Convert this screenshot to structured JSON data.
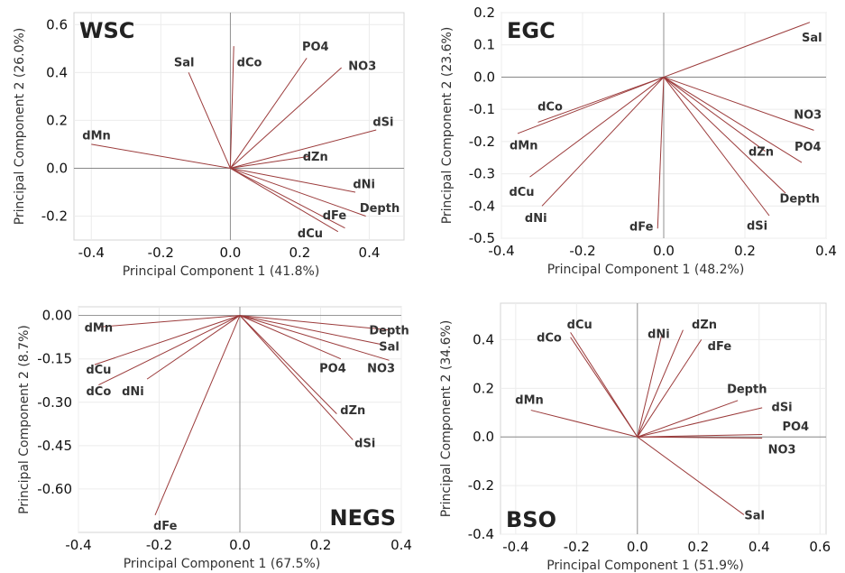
{
  "figure": {
    "colors": {
      "loading": "#9b3b3b",
      "axis_zero": "#7a7a7a",
      "grid": "#ececec",
      "frame": "#d4d4d4"
    }
  },
  "chart_data": [
    {
      "type": "scatter",
      "subtype": "biplot-loadings",
      "title": "WSC",
      "title_position": "top-left",
      "xlabel": "Principal Component 1 (41.8%)",
      "ylabel": "Principal Component 2 (26.0%)",
      "xlim": [
        -0.45,
        0.5
      ],
      "ylim": [
        -0.3,
        0.65
      ],
      "xticks": [
        -0.4,
        -0.2,
        0.0,
        0.2,
        0.4
      ],
      "xtick_labels": [
        "-0.4",
        "-0.2",
        "0.0",
        "0.2",
        "0.4"
      ],
      "yticks": [
        -0.2,
        0.0,
        0.2,
        0.4,
        0.6
      ],
      "ytick_labels": [
        "-0.2",
        "0.0",
        "0.2",
        "0.4",
        "0.6"
      ],
      "grid": true,
      "vectors": [
        {
          "name": "Sal",
          "x": -0.12,
          "y": 0.4,
          "lx": -0.133,
          "ly": 0.445
        },
        {
          "name": "dCo",
          "x": 0.01,
          "y": 0.51,
          "lx": 0.055,
          "ly": 0.445
        },
        {
          "name": "PO4",
          "x": 0.22,
          "y": 0.46,
          "lx": 0.245,
          "ly": 0.51
        },
        {
          "name": "NO3",
          "x": 0.32,
          "y": 0.42,
          "lx": 0.38,
          "ly": 0.43
        },
        {
          "name": "dSi",
          "x": 0.42,
          "y": 0.16,
          "lx": 0.44,
          "ly": 0.195
        },
        {
          "name": "dMn",
          "x": -0.4,
          "y": 0.1,
          "lx": -0.385,
          "ly": 0.14
        },
        {
          "name": "dZn",
          "x": 0.23,
          "y": 0.05,
          "lx": 0.245,
          "ly": 0.05
        },
        {
          "name": "dNi",
          "x": 0.36,
          "y": -0.1,
          "lx": 0.385,
          "ly": -0.065
        },
        {
          "name": "Depth",
          "x": 0.39,
          "y": -0.2,
          "lx": 0.43,
          "ly": -0.165
        },
        {
          "name": "dFe",
          "x": 0.33,
          "y": -0.25,
          "lx": 0.3,
          "ly": -0.195
        },
        {
          "name": "dCu",
          "x": 0.31,
          "y": -0.265,
          "lx": 0.23,
          "ly": -0.27
        }
      ]
    },
    {
      "type": "scatter",
      "subtype": "biplot-loadings",
      "title": "EGC",
      "title_position": "top-left",
      "xlabel": "Principal Component 1 (48.2%)",
      "ylabel": "Principal Component 2 (23.6%)",
      "xlim": [
        -0.4,
        0.4
      ],
      "ylim": [
        -0.5,
        0.2
      ],
      "xticks": [
        -0.4,
        -0.2,
        0.0,
        0.2,
        0.4
      ],
      "xtick_labels": [
        "-0.4",
        "-0.2",
        "0.0",
        "0.2",
        "0.4"
      ],
      "yticks": [
        -0.5,
        -0.4,
        -0.3,
        -0.2,
        -0.1,
        0.0,
        0.1,
        0.2
      ],
      "ytick_labels": [
        "-0.5",
        "-0.4",
        "-0.3",
        "-0.2",
        "-0.1",
        "0.0",
        "0.1",
        "0.2"
      ],
      "grid": true,
      "vectors": [
        {
          "name": "Sal",
          "x": 0.36,
          "y": 0.17,
          "lx": 0.365,
          "ly": 0.125
        },
        {
          "name": "NO3",
          "x": 0.37,
          "y": -0.165,
          "lx": 0.355,
          "ly": -0.115
        },
        {
          "name": "PO4",
          "x": 0.34,
          "y": -0.265,
          "lx": 0.355,
          "ly": -0.215
        },
        {
          "name": "dZn",
          "x": 0.25,
          "y": -0.23,
          "lx": 0.24,
          "ly": -0.23
        },
        {
          "name": "Depth",
          "x": 0.3,
          "y": -0.36,
          "lx": 0.335,
          "ly": -0.375
        },
        {
          "name": "dSi",
          "x": 0.26,
          "y": -0.43,
          "lx": 0.23,
          "ly": -0.46
        },
        {
          "name": "dCo",
          "x": -0.31,
          "y": -0.14,
          "lx": -0.28,
          "ly": -0.09
        },
        {
          "name": "dMn",
          "x": -0.36,
          "y": -0.175,
          "lx": -0.345,
          "ly": -0.21
        },
        {
          "name": "dCu",
          "x": -0.33,
          "y": -0.31,
          "lx": -0.35,
          "ly": -0.355
        },
        {
          "name": "dNi",
          "x": -0.3,
          "y": -0.4,
          "lx": -0.315,
          "ly": -0.435
        },
        {
          "name": "dFe",
          "x": -0.015,
          "y": -0.47,
          "lx": -0.055,
          "ly": -0.462
        }
      ]
    },
    {
      "type": "scatter",
      "subtype": "biplot-loadings",
      "title": "NEGS",
      "title_position": "bottom-right",
      "xlabel": "Principal Component 1 (67.5%)",
      "ylabel": "Principal Component 2 (8.7%)",
      "xlim": [
        -0.4,
        0.4
      ],
      "ylim": [
        -0.75,
        0.03
      ],
      "xticks": [
        -0.4,
        -0.2,
        0.0,
        0.2,
        0.4
      ],
      "xtick_labels": [
        "-0.4",
        "-0.2",
        "0.0",
        "0.2",
        "0.4"
      ],
      "yticks": [
        -0.6,
        -0.45,
        -0.3,
        -0.15,
        0.0
      ],
      "ytick_labels": [
        "-0.60",
        "-0.45",
        "-0.30",
        "-0.15",
        "0.00"
      ],
      "grid": true,
      "vectors": [
        {
          "name": "dMn",
          "x": -0.35,
          "y": -0.04,
          "lx": -0.35,
          "ly": -0.04
        },
        {
          "name": "dCu",
          "x": -0.36,
          "y": -0.17,
          "lx": -0.35,
          "ly": -0.185
        },
        {
          "name": "dCo",
          "x": -0.35,
          "y": -0.24,
          "lx": -0.35,
          "ly": -0.26
        },
        {
          "name": "dNi",
          "x": -0.23,
          "y": -0.22,
          "lx": -0.265,
          "ly": -0.26
        },
        {
          "name": "dFe",
          "x": -0.21,
          "y": -0.69,
          "lx": -0.185,
          "ly": -0.725
        },
        {
          "name": "Depth",
          "x": 0.37,
          "y": -0.05,
          "lx": 0.37,
          "ly": -0.05
        },
        {
          "name": "Sal",
          "x": 0.35,
          "y": -0.1,
          "lx": 0.37,
          "ly": -0.105
        },
        {
          "name": "NO3",
          "x": 0.37,
          "y": -0.155,
          "lx": 0.35,
          "ly": -0.18
        },
        {
          "name": "PO4",
          "x": 0.25,
          "y": -0.15,
          "lx": 0.23,
          "ly": -0.18
        },
        {
          "name": "dZn",
          "x": 0.24,
          "y": -0.34,
          "lx": 0.28,
          "ly": -0.325
        },
        {
          "name": "dSi",
          "x": 0.28,
          "y": -0.43,
          "lx": 0.31,
          "ly": -0.44
        }
      ]
    },
    {
      "type": "scatter",
      "subtype": "biplot-loadings",
      "title": "BSO",
      "title_position": "bottom-left",
      "xlabel": "Principal Component 1 (51.9%)",
      "ylabel": "Principal Component 2 (34.6%)",
      "xlim": [
        -0.45,
        0.62
      ],
      "ylim": [
        -0.4,
        0.55
      ],
      "xticks": [
        -0.4,
        -0.2,
        0.0,
        0.2,
        0.4,
        0.6
      ],
      "xtick_labels": [
        "-0.4",
        "-0.2",
        "0.0",
        "0.2",
        "0.4",
        "0.6"
      ],
      "yticks": [
        -0.4,
        -0.2,
        0.0,
        0.2,
        0.4
      ],
      "ytick_labels": [
        "-0.4",
        "-0.2",
        "0.0",
        "0.2",
        "0.4"
      ],
      "grid": true,
      "vectors": [
        {
          "name": "dCu",
          "x": -0.22,
          "y": 0.43,
          "lx": -0.19,
          "ly": 0.465
        },
        {
          "name": "dCo",
          "x": -0.22,
          "y": 0.41,
          "lx": -0.29,
          "ly": 0.41
        },
        {
          "name": "dNi",
          "x": 0.08,
          "y": 0.42,
          "lx": 0.07,
          "ly": 0.425
        },
        {
          "name": "dZn",
          "x": 0.15,
          "y": 0.44,
          "lx": 0.22,
          "ly": 0.465
        },
        {
          "name": "dFe",
          "x": 0.21,
          "y": 0.4,
          "lx": 0.27,
          "ly": 0.375
        },
        {
          "name": "dMn",
          "x": -0.35,
          "y": 0.11,
          "lx": -0.355,
          "ly": 0.155
        },
        {
          "name": "Depth",
          "x": 0.33,
          "y": 0.15,
          "lx": 0.36,
          "ly": 0.2
        },
        {
          "name": "dSi",
          "x": 0.41,
          "y": 0.12,
          "lx": 0.475,
          "ly": 0.125
        },
        {
          "name": "PO4",
          "x": 0.41,
          "y": 0.01,
          "lx": 0.52,
          "ly": 0.045
        },
        {
          "name": "NO3",
          "x": 0.41,
          "y": -0.005,
          "lx": 0.475,
          "ly": -0.05
        },
        {
          "name": "Sal",
          "x": 0.35,
          "y": -0.32,
          "lx": 0.385,
          "ly": -0.32
        }
      ]
    }
  ]
}
